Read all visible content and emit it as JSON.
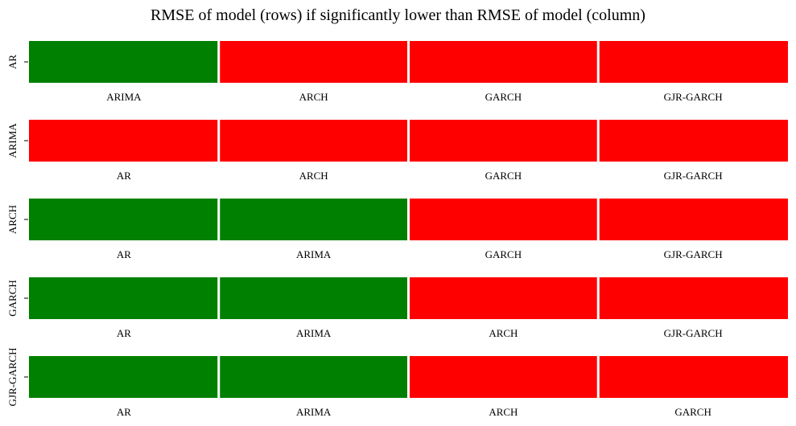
{
  "chart_data": {
    "type": "heatmap",
    "title": "RMSE of model (rows) if significantly lower than RMSE of model (column)",
    "colors": {
      "true": "#008000",
      "false": "#ff0000"
    },
    "grid": false,
    "legend": "none",
    "rows": [
      {
        "model": "AR",
        "columns": [
          "ARIMA",
          "ARCH",
          "GARCH",
          "GJR-GARCH"
        ],
        "significantly_lower": [
          true,
          false,
          false,
          false
        ]
      },
      {
        "model": "ARIMA",
        "columns": [
          "AR",
          "ARCH",
          "GARCH",
          "GJR-GARCH"
        ],
        "significantly_lower": [
          false,
          false,
          false,
          false
        ]
      },
      {
        "model": "ARCH",
        "columns": [
          "AR",
          "ARIMA",
          "GARCH",
          "GJR-GARCH"
        ],
        "significantly_lower": [
          true,
          true,
          false,
          false
        ]
      },
      {
        "model": "GARCH",
        "columns": [
          "AR",
          "ARIMA",
          "ARCH",
          "GJR-GARCH"
        ],
        "significantly_lower": [
          true,
          true,
          false,
          false
        ]
      },
      {
        "model": "GJR-GARCH",
        "columns": [
          "AR",
          "ARIMA",
          "ARCH",
          "GARCH"
        ],
        "significantly_lower": [
          true,
          true,
          false,
          false
        ]
      }
    ]
  }
}
